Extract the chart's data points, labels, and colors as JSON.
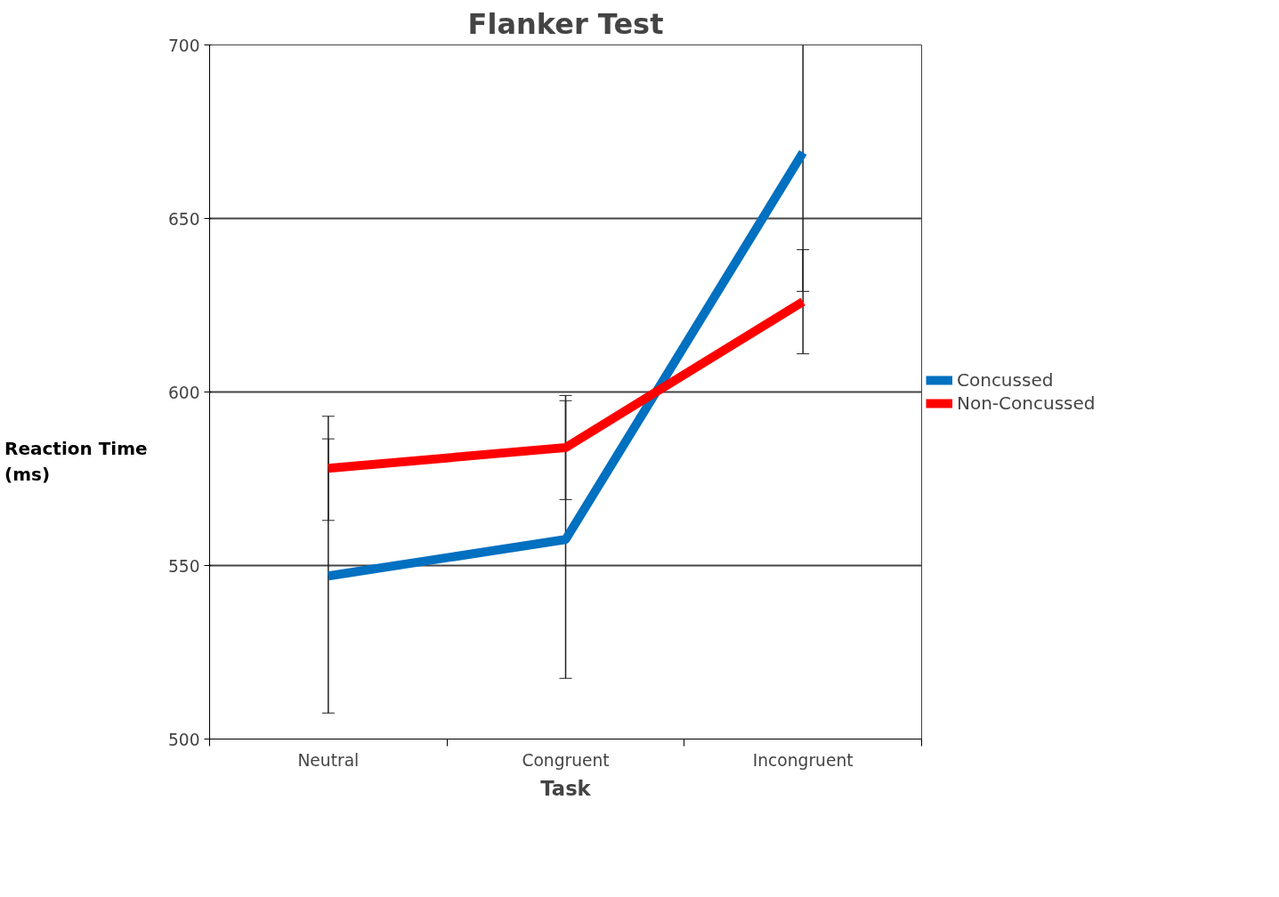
{
  "chart_data": {
    "type": "line",
    "title": "Flanker Test",
    "xlabel": "Task",
    "ylabel": "Reaction Time\n(ms)",
    "categories": [
      "Neutral",
      "Congruent",
      "Incongruent"
    ],
    "series": [
      {
        "name": "Concussed",
        "color": "#0070c0",
        "values": [
          547,
          557.5,
          669
        ],
        "errors": [
          39.5,
          40,
          40
        ]
      },
      {
        "name": "Non-Concussed",
        "color": "#ff0000",
        "values": [
          578,
          584,
          626
        ],
        "errors": [
          15,
          15,
          15
        ]
      }
    ],
    "ylim": [
      500,
      700
    ],
    "yticks": [
      500,
      550,
      600,
      650,
      700
    ],
    "grid": "y",
    "legend": "right",
    "marker": "none",
    "line_style": "solid"
  }
}
